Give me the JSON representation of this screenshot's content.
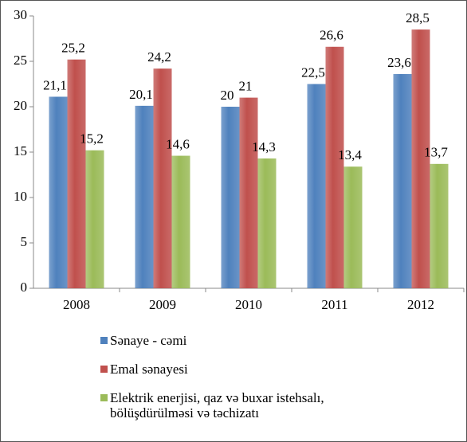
{
  "chart_data": {
    "type": "bar",
    "categories": [
      "2008",
      "2009",
      "2010",
      "2011",
      "2012"
    ],
    "series": [
      {
        "name": "Sənaye - cəmi",
        "color": "#4f81bd",
        "values": [
          21.1,
          20.1,
          20,
          22.5,
          23.6
        ],
        "value_labels": [
          "21,1",
          "20,1",
          "20",
          "22,5",
          "23,6"
        ]
      },
      {
        "name": "Emal sənayesi",
        "color": "#c0504d",
        "values": [
          25.2,
          24.2,
          21,
          26.6,
          28.5
        ],
        "value_labels": [
          "25,2",
          "24,2",
          "21",
          "26,6",
          "28,5"
        ]
      },
      {
        "name": "Elektrik enerjisi, qaz və buxar istehsalı, bölüşdürülməsi və təchizatı",
        "color": "#9bbb59",
        "values": [
          15.2,
          14.6,
          14.3,
          13.4,
          13.7
        ],
        "value_labels": [
          "15,2",
          "14,6",
          "14,3",
          "13,4",
          "13,7"
        ]
      }
    ],
    "ylim": [
      0,
      30
    ],
    "yticks": [
      0,
      5,
      10,
      15,
      20,
      25,
      30
    ],
    "grid": false,
    "legend": "bottom"
  }
}
